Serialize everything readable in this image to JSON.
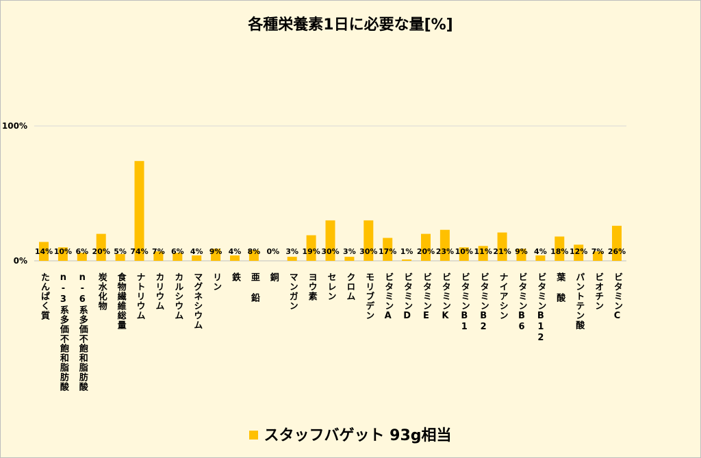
{
  "chart_data": {
    "type": "bar",
    "title": "各種栄養素1日に必要な量[%]",
    "categories": [
      "たんぱく質",
      "n-3系多価不飽和脂肪酸",
      "n-6系多価不飽和脂肪酸",
      "炭水化物",
      "食物繊維総量",
      "ナトリウム",
      "カリウム",
      "カルシウム",
      "マグネシウム",
      "リン",
      "鉄",
      "亜 鉛",
      "銅",
      "マンガン",
      "ヨウ素",
      "セレン",
      "クロム",
      "モリブデン",
      "ビタミンA",
      "ビタミンD",
      "ビタミンE",
      "ビタミンK",
      "ビタミンB1",
      "ビタミンB2",
      "ナイアシン",
      "ビタミンB6",
      "ビタミンB12",
      "葉 酸",
      "パントテン酸",
      "ビオチン",
      "ビタミンC"
    ],
    "series": [
      {
        "name": "スタッフバゲット 93g相当",
        "values": [
          14,
          10,
          6,
          20,
          5,
          74,
          7,
          6,
          4,
          9,
          4,
          8,
          0,
          3,
          19,
          30,
          3,
          30,
          17,
          1,
          20,
          23,
          10,
          11,
          21,
          9,
          4,
          18,
          12,
          7,
          26
        ],
        "labels": [
          "14%",
          "10%",
          "6%",
          "20%",
          "5%",
          "74%",
          "7%",
          "6%",
          "4%",
          "9%",
          "4%",
          "8%",
          "0%",
          "3%",
          "19%",
          "30%",
          "3%",
          "30%",
          "17%",
          "1%",
          "20%",
          "23%",
          "10%",
          "11%",
          "21%",
          "9%",
          "4%",
          "18%",
          "12%",
          "7%",
          "26%"
        ]
      }
    ],
    "yticks": [
      "0%",
      "100%"
    ],
    "ylim": [
      0,
      100
    ],
    "grid": true,
    "legend_position": "bottom",
    "bar_color": "#ffc000",
    "grid_color": "#d9d9d9"
  }
}
